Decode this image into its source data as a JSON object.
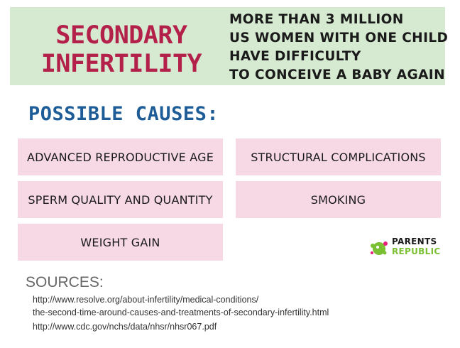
{
  "banner": {
    "title_lines": [
      "SECONDARY",
      "INFERTILITY"
    ],
    "stat_lines": [
      "MORE THAN 3 MILLION",
      "US WOMEN WITH ONE CHILD",
      "HAVE DIFFICULTY",
      "TO CONCEIVE A BABY AGAIN"
    ]
  },
  "causes": {
    "heading": "POSSIBLE CAUSES:",
    "items": [
      "ADVANCED REPRODUCTIVE AGE",
      "STRUCTURAL COMPLICATIONS",
      "SPERM QUALITY AND QUANTITY",
      "SMOKING",
      "WEIGHT GAIN"
    ]
  },
  "logo": {
    "line1": "PARENTS",
    "line2": "REPUBLIC"
  },
  "sources": {
    "heading": "SOURCES:",
    "lines": [
      "http://www.resolve.org/about-infertility/medical-conditions/",
      "the-second-time-around-causes-and-treatments-of-secondary-infertility.html",
      "http://www.cdc.gov/nchs/data/nhsr/nhsr067.pdf"
    ]
  },
  "colors": {
    "banner_bg": "#d5ead0",
    "title": "#b3204a",
    "heading": "#1d5c96",
    "cause_bg": "#f6d9e5"
  }
}
